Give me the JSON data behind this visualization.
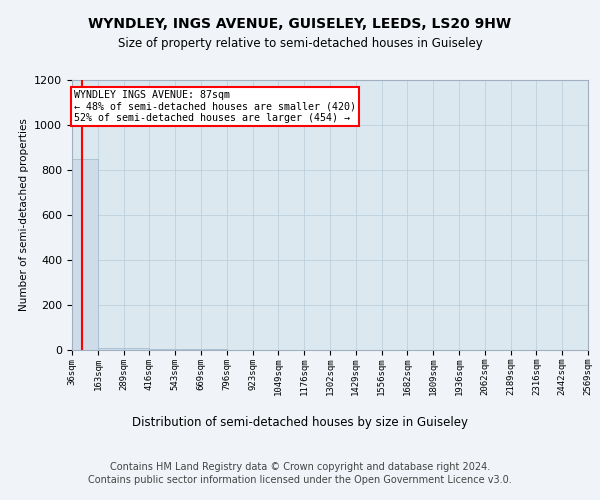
{
  "title": "WYNDLEY, INGS AVENUE, GUISELEY, LEEDS, LS20 9HW",
  "subtitle": "Size of property relative to semi-detached houses in Guiseley",
  "xlabel": "Distribution of semi-detached houses by size in Guiseley",
  "ylabel": "Number of semi-detached properties",
  "footer_line1": "Contains HM Land Registry data © Crown copyright and database right 2024.",
  "footer_line2": "Contains public sector information licensed under the Open Government Licence v3.0.",
  "annotation_title": "WYNDLEY INGS AVENUE: 87sqm",
  "annotation_line1": "← 48% of semi-detached houses are smaller (420)",
  "annotation_line2": "52% of semi-detached houses are larger (454) →",
  "property_size": 87,
  "bin_edges": [
    36,
    163,
    289,
    416,
    543,
    669,
    796,
    923,
    1049,
    1176,
    1302,
    1429,
    1556,
    1682,
    1809,
    1936,
    2062,
    2189,
    2316,
    2442,
    2569
  ],
  "bar_heights": [
    850,
    10,
    8,
    5,
    4,
    3,
    2,
    2,
    1,
    1,
    1,
    1,
    0,
    0,
    0,
    0,
    0,
    0,
    0,
    0
  ],
  "bar_color": "#cddce8",
  "bar_edge_color": "#a0b8cc",
  "red_line_x": 87,
  "ylim": [
    0,
    1200
  ],
  "background_color": "#f0f4f8",
  "plot_bg_color": "#dce8f0",
  "grid_color": "#b8ccd8"
}
